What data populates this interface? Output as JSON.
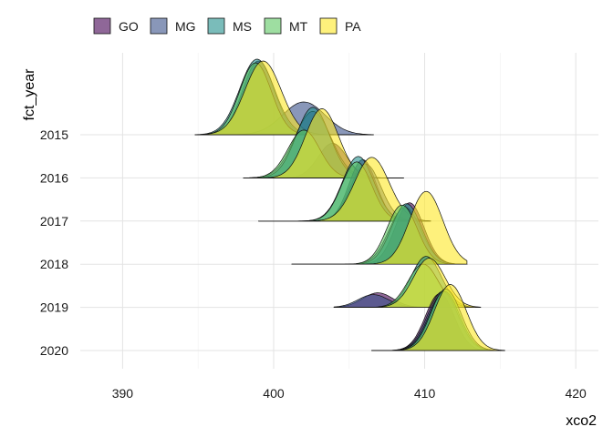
{
  "chart_data": {
    "type": "ridgeline",
    "xlabel": "xco2",
    "ylabel": "fct_year",
    "xlim": [
      387.2,
      421.5
    ],
    "x_ticks": [
      390,
      400,
      410,
      420
    ],
    "grid": true,
    "legend_position": "top",
    "categories": [
      "2015",
      "2016",
      "2017",
      "2018",
      "2019",
      "2020"
    ],
    "series": [
      {
        "name": "GO",
        "color": "#440154"
      },
      {
        "name": "MG",
        "color": "#3B528B"
      },
      {
        "name": "MS",
        "color": "#21908C"
      },
      {
        "name": "MT",
        "color": "#5DC863"
      },
      {
        "name": "PA",
        "color": "#FDE725"
      }
    ],
    "ridges": [
      {
        "year": "2015",
        "min": 394.8,
        "max": 406.6,
        "densities": [
          {
            "series": "GO",
            "peak_x": 399.0,
            "sd": 1.05,
            "height": 1.62
          },
          {
            "series": "MG",
            "peak_x": 402.0,
            "sd": 1.4,
            "height": 0.72
          },
          {
            "series": "MS",
            "peak_x": 398.9,
            "sd": 1.15,
            "height": 1.66
          },
          {
            "series": "MT",
            "peak_x": 398.8,
            "sd": 1.05,
            "height": 1.58
          },
          {
            "series": "PA",
            "peak_x": 399.3,
            "sd": 1.2,
            "height": 1.62
          }
        ]
      },
      {
        "year": "2016",
        "min": 398.0,
        "max": 408.6,
        "densities": [
          {
            "series": "GO",
            "peak_x": 403.9,
            "sd": 0.95,
            "height": 0.76
          },
          {
            "series": "MG",
            "peak_x": 402.6,
            "sd": 1.2,
            "height": 1.46
          },
          {
            "series": "MS",
            "peak_x": 402.6,
            "sd": 1.1,
            "height": 1.55
          },
          {
            "series": "MT",
            "peak_x": 402.0,
            "sd": 1.05,
            "height": 1.05
          },
          {
            "series": "PA",
            "peak_x": 403.2,
            "sd": 1.1,
            "height": 1.52
          }
        ]
      },
      {
        "year": "2017",
        "min": 399.0,
        "max": 410.4,
        "densities": [
          {
            "series": "GO",
            "peak_x": 405.9,
            "sd": 0.9,
            "height": 1.35
          },
          {
            "series": "MG",
            "peak_x": 406.1,
            "sd": 1.0,
            "height": 1.25
          },
          {
            "series": "MS",
            "peak_x": 405.6,
            "sd": 1.05,
            "height": 1.42
          },
          {
            "series": "MT",
            "peak_x": 405.5,
            "sd": 1.0,
            "height": 1.3
          },
          {
            "series": "PA",
            "peak_x": 406.5,
            "sd": 1.15,
            "height": 1.4
          }
        ]
      },
      {
        "year": "2018",
        "min": 401.2,
        "max": 412.8,
        "densities": [
          {
            "series": "GO",
            "peak_x": 409.0,
            "sd": 0.95,
            "height": 1.35
          },
          {
            "series": "MG",
            "peak_x": 408.7,
            "sd": 1.05,
            "height": 1.25
          },
          {
            "series": "MS",
            "peak_x": 408.8,
            "sd": 1.0,
            "height": 1.33
          },
          {
            "series": "MT",
            "peak_x": 408.5,
            "sd": 1.0,
            "height": 1.3
          },
          {
            "series": "PA",
            "peak_x": 410.1,
            "sd": 1.1,
            "height": 1.6
          }
        ]
      },
      {
        "year": "2019",
        "min": 404.0,
        "max": 413.7,
        "densities": [
          {
            "series": "GO",
            "peak_x": 406.9,
            "sd": 1.0,
            "height": 0.32
          },
          {
            "series": "MG",
            "peak_x": 406.6,
            "sd": 1.0,
            "height": 0.28
          },
          {
            "series": "MS",
            "peak_x": 410.1,
            "sd": 1.0,
            "height": 1.12
          },
          {
            "series": "MT",
            "peak_x": 409.9,
            "sd": 1.0,
            "height": 0.95
          },
          {
            "series": "PA",
            "peak_x": 410.3,
            "sd": 1.05,
            "height": 1.08
          }
        ]
      },
      {
        "year": "2020",
        "min": 406.5,
        "max": 415.3,
        "densities": [
          {
            "series": "GO",
            "peak_x": 411.0,
            "sd": 0.95,
            "height": 1.25
          },
          {
            "series": "MG",
            "peak_x": 411.2,
            "sd": 1.0,
            "height": 1.3
          },
          {
            "series": "MS",
            "peak_x": 411.3,
            "sd": 1.0,
            "height": 1.3
          },
          {
            "series": "MT",
            "peak_x": 411.4,
            "sd": 1.0,
            "height": 1.35
          },
          {
            "series": "PA",
            "peak_x": 411.7,
            "sd": 1.05,
            "height": 1.45
          }
        ]
      }
    ]
  }
}
